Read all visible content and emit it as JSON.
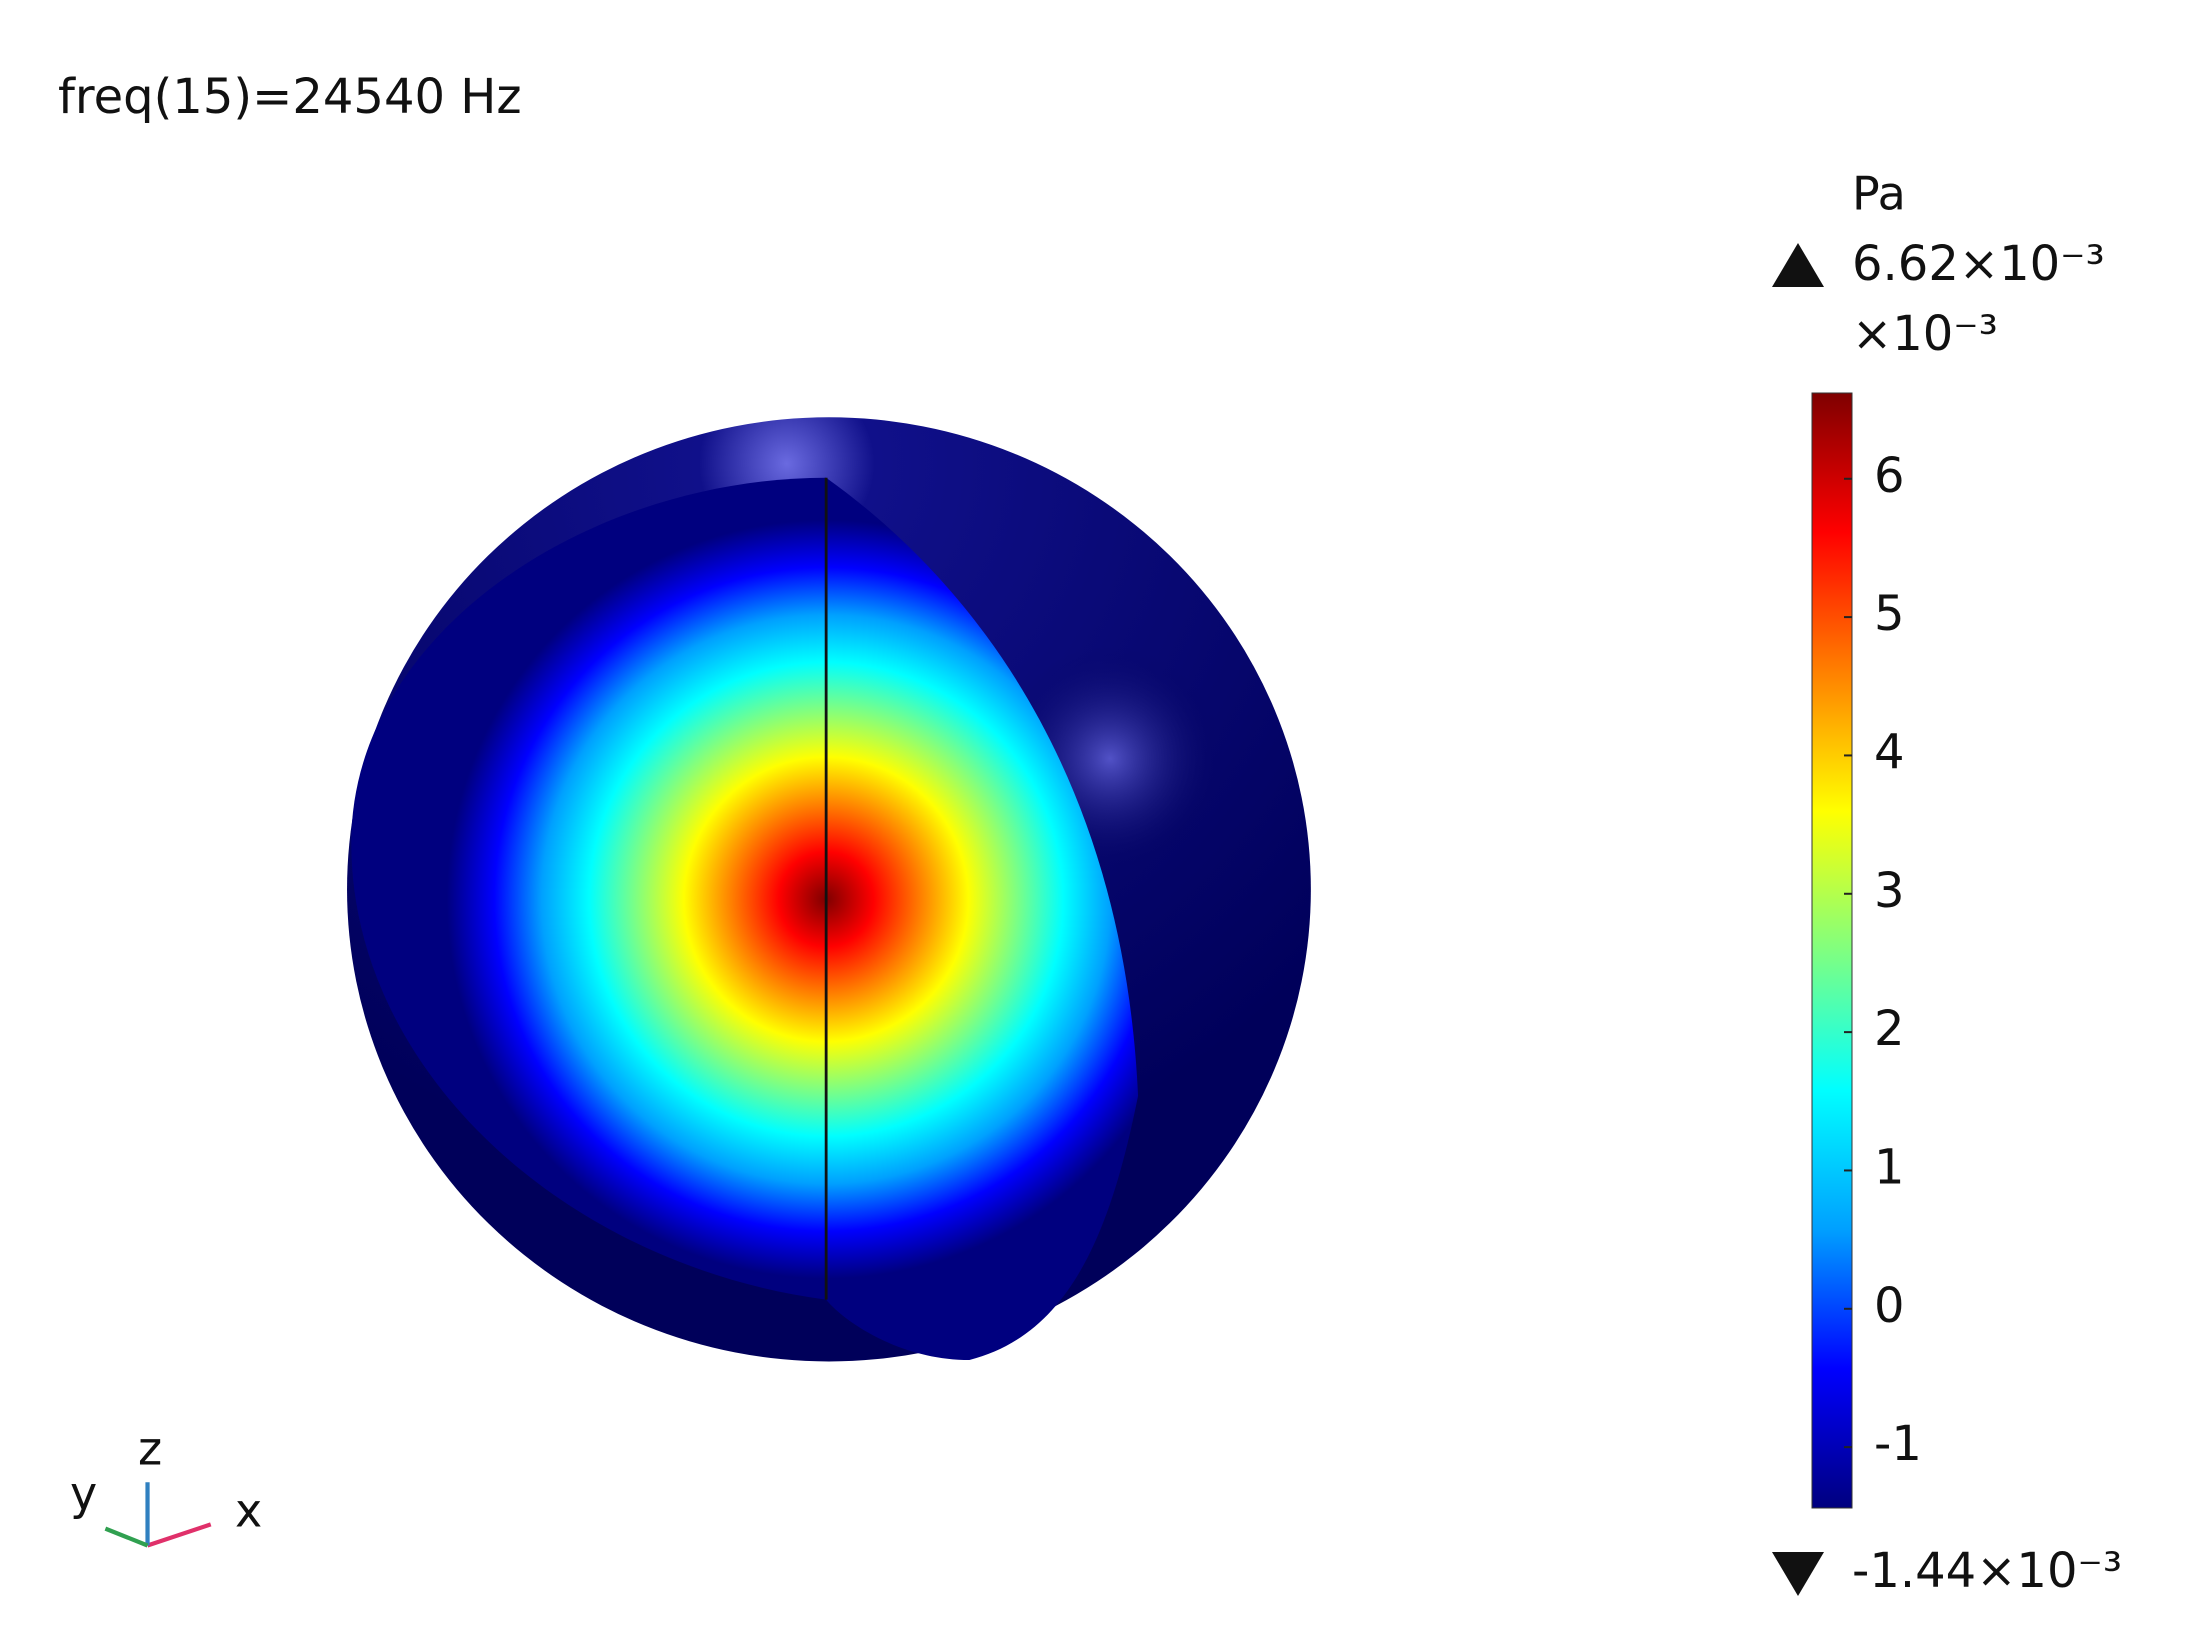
{
  "chart_data": {
    "type": "surface",
    "title": "freq(15)=24540 Hz",
    "unit": "Pa",
    "multiplier": "×10⁻³",
    "max": {
      "value": 6.62,
      "label": "6.62×10⁻³"
    },
    "min": {
      "value": -1.44,
      "label": "-1.44×10⁻³"
    },
    "ylim": [
      -1.44,
      6.62
    ],
    "yticks": [
      -1,
      0,
      1,
      2,
      3,
      4,
      5,
      6
    ],
    "colormap": [
      "#00007f",
      "#0000ff",
      "#00a0ff",
      "#00ffff",
      "#80ff80",
      "#ffff00",
      "#ff8000",
      "#ff0000",
      "#7f0000"
    ],
    "axes_labels": {
      "x": "x",
      "y": "y",
      "z": "z"
    }
  }
}
